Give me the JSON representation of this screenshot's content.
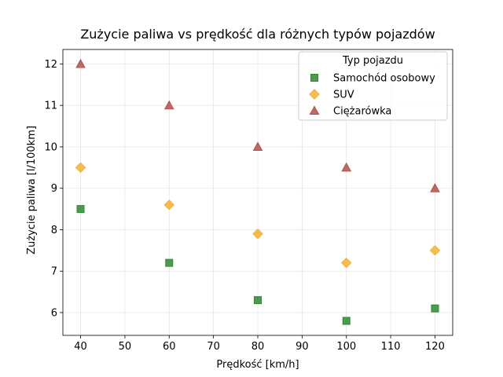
{
  "chart_data": {
    "type": "scatter",
    "title": "Zużycie paliwa vs prędkość dla różnych typów pojazdów",
    "xlabel": "Prędkość [km/h]",
    "ylabel": "Zużycie paliwa [l/100km]",
    "xlim": [
      36,
      124
    ],
    "ylim": [
      5.45,
      12.35
    ],
    "xticks": [
      40,
      50,
      60,
      70,
      80,
      90,
      100,
      110,
      120
    ],
    "yticks": [
      6,
      7,
      8,
      9,
      10,
      11,
      12
    ],
    "grid": true,
    "legend": {
      "title": "Typ pojazdu",
      "placement": "top-right"
    },
    "series": [
      {
        "name": "Samochód osobowy",
        "marker": "square",
        "color": "#2e8b2e",
        "x": [
          40,
          60,
          80,
          100,
          120
        ],
        "y": [
          8.5,
          7.2,
          6.3,
          5.8,
          6.1
        ]
      },
      {
        "name": "SUV",
        "marker": "diamond",
        "color": "#f5b030",
        "x": [
          40,
          60,
          80,
          100,
          120
        ],
        "y": [
          9.5,
          8.6,
          7.9,
          7.2,
          7.5
        ]
      },
      {
        "name": "Ciężarówka",
        "marker": "triangle",
        "color": "#b5504a",
        "x": [
          40,
          60,
          80,
          100,
          120
        ],
        "y": [
          12.0,
          11.0,
          10.0,
          9.5,
          9.0
        ]
      }
    ]
  }
}
